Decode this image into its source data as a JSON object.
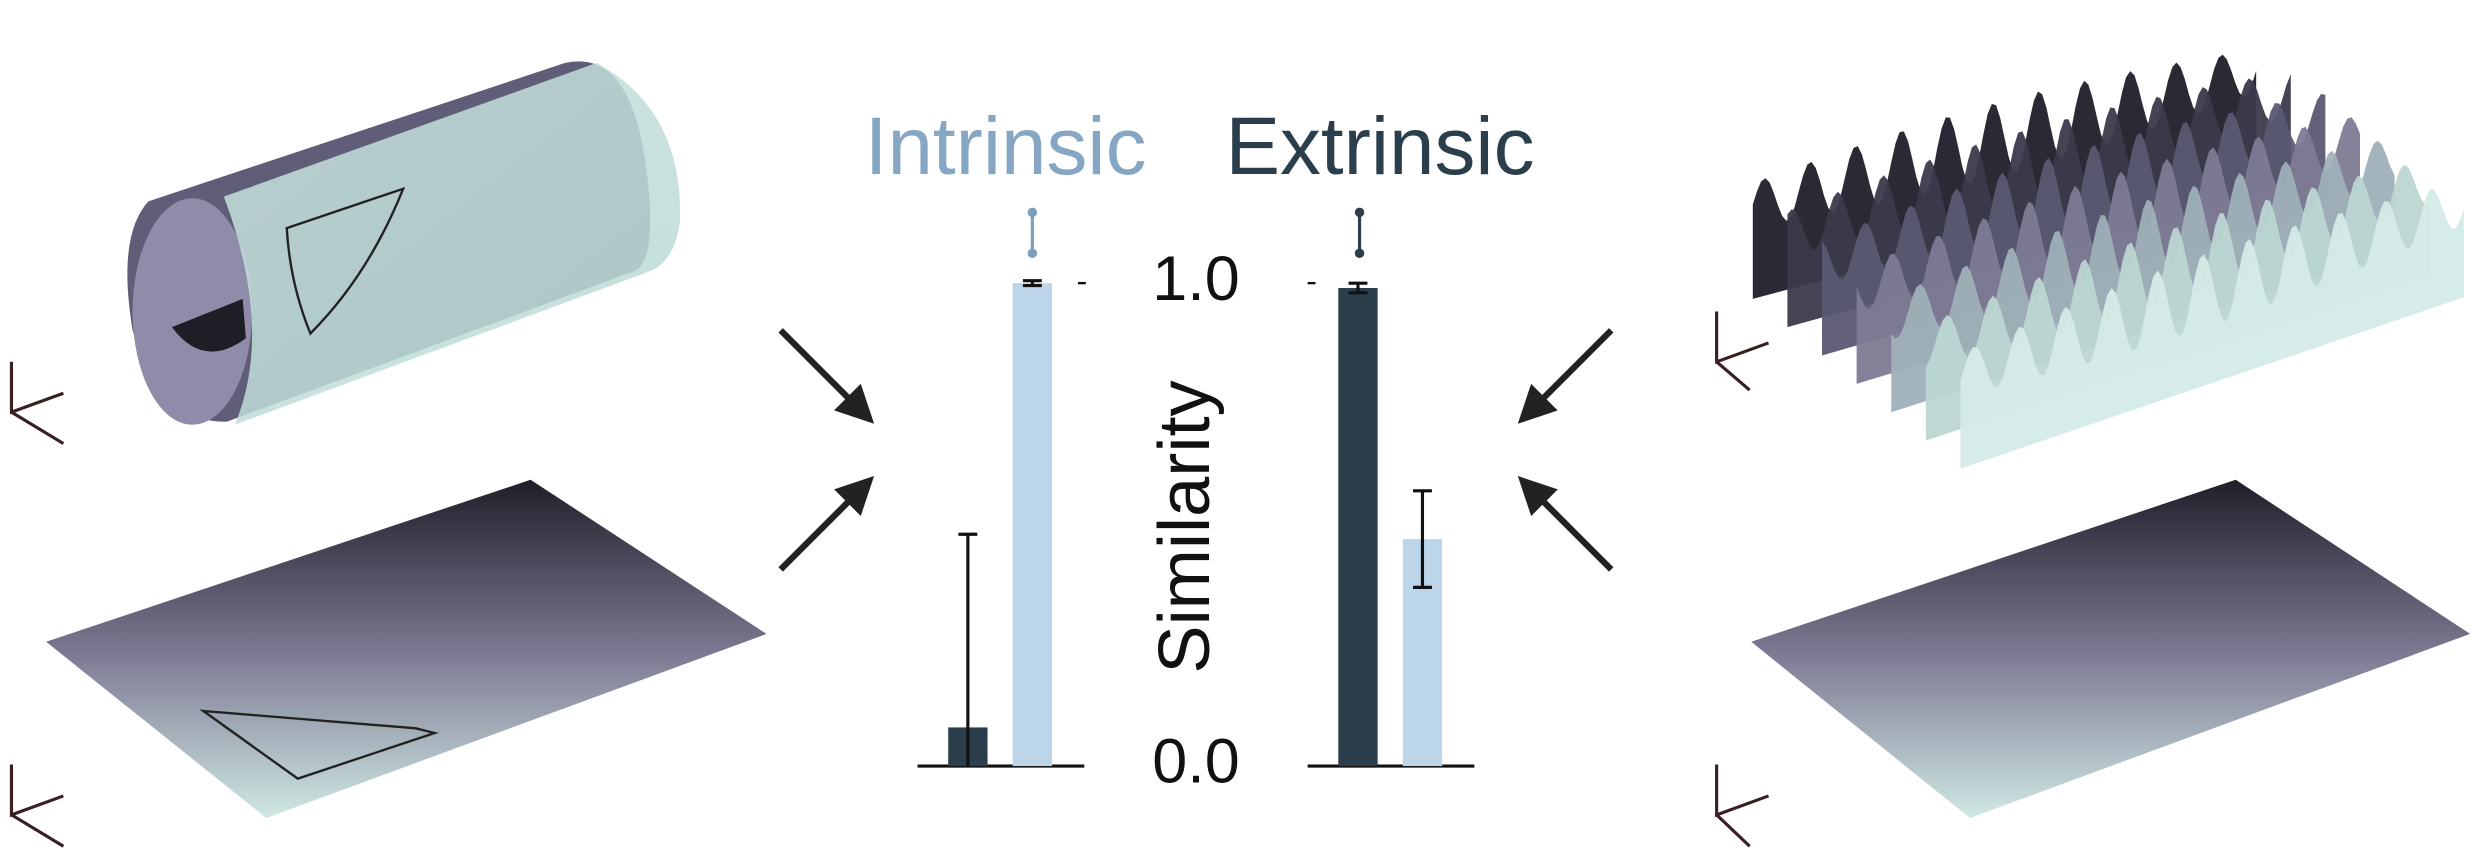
{
  "chart_data": {
    "type": "bar",
    "y_label": "Similarity",
    "categories": [
      null,
      null
    ],
    "series": [
      {
        "name": "Extrinsic",
        "color": "#2b3e4c",
        "text_color": "#2b3e4c",
        "values": [
          0.08,
          0.99
        ],
        "errors": [
          0.4,
          0.01
        ]
      },
      {
        "name": "Intrinsic",
        "color": "#bcd5e9",
        "text_color": "#86a7c3",
        "values": [
          1.0,
          0.47
        ],
        "errors": [
          0.005,
          0.1
        ]
      }
    ],
    "ylim": [
      0,
      1
    ],
    "yticks": [
      {
        "value": 0,
        "label": "0.0"
      },
      {
        "value": 1,
        "label": "1.0"
      }
    ]
  }
}
